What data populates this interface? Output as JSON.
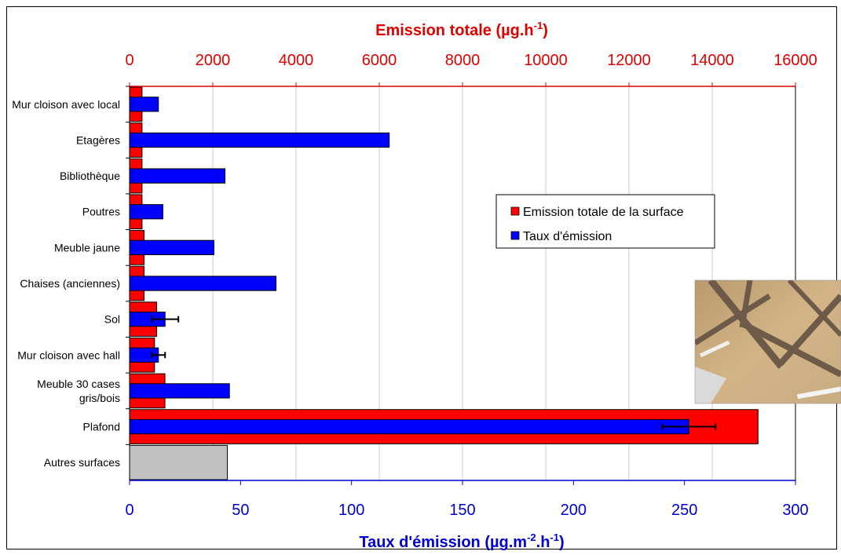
{
  "chart_data": {
    "type": "bar",
    "orientation": "horizontal",
    "categories": [
      "Mur cloison avec local",
      "Etagères",
      "Bibliothèque",
      "Poutres",
      "Meuble jaune",
      "Chaises (anciennes)",
      "Sol",
      "Mur cloison avec hall",
      "Meuble 30 cases gris/bois",
      "Plafond",
      "Autres surfaces"
    ],
    "category_label_lines": [
      [
        "Mur cloison avec local"
      ],
      [
        "Etagères"
      ],
      [
        "Bibliothèque"
      ],
      [
        "Poutres"
      ],
      [
        "Meuble jaune"
      ],
      [
        "Chaises (anciennes)"
      ],
      [
        "Sol"
      ],
      [
        "Mur cloison avec hall"
      ],
      [
        "Meuble 30 cases",
        "gris/bois"
      ],
      [
        "Plafond"
      ],
      [
        "Autres surfaces"
      ]
    ],
    "series": [
      {
        "name": "Emission totale de la surface",
        "axis": "top",
        "color": "#ff0000",
        "values": [
          300,
          300,
          300,
          300,
          350,
          350,
          650,
          600,
          850,
          15100,
          2350
        ]
      },
      {
        "name": "Taux d'émission",
        "axis": "bottom",
        "color": "#0000ff",
        "values": [
          13,
          117,
          43,
          15,
          38,
          66,
          16,
          13,
          45,
          252,
          null
        ],
        "error": [
          null,
          null,
          null,
          null,
          null,
          null,
          6,
          3,
          null,
          12,
          null
        ]
      }
    ],
    "other_surfaces_color": "#c0c0c0",
    "top_axis": {
      "title": "Emission totale (µg.h",
      "title_sup": "-1",
      "title_end": ")",
      "min": 0,
      "max": 16000,
      "ticks": [
        "0",
        "2000",
        "4000",
        "6000",
        "8000",
        "10000",
        "12000",
        "14000",
        "16000"
      ],
      "color": "#e00000"
    },
    "bottom_axis": {
      "title_parts": [
        "Taux d'émission (µg.m",
        "-2",
        ".h",
        "-1",
        ")"
      ],
      "min": 0,
      "max": 300,
      "ticks": [
        "0",
        "50",
        "100",
        "150",
        "200",
        "250",
        "300"
      ],
      "color": "#0000d0"
    },
    "grid": true,
    "legend_position": "right-middle"
  }
}
